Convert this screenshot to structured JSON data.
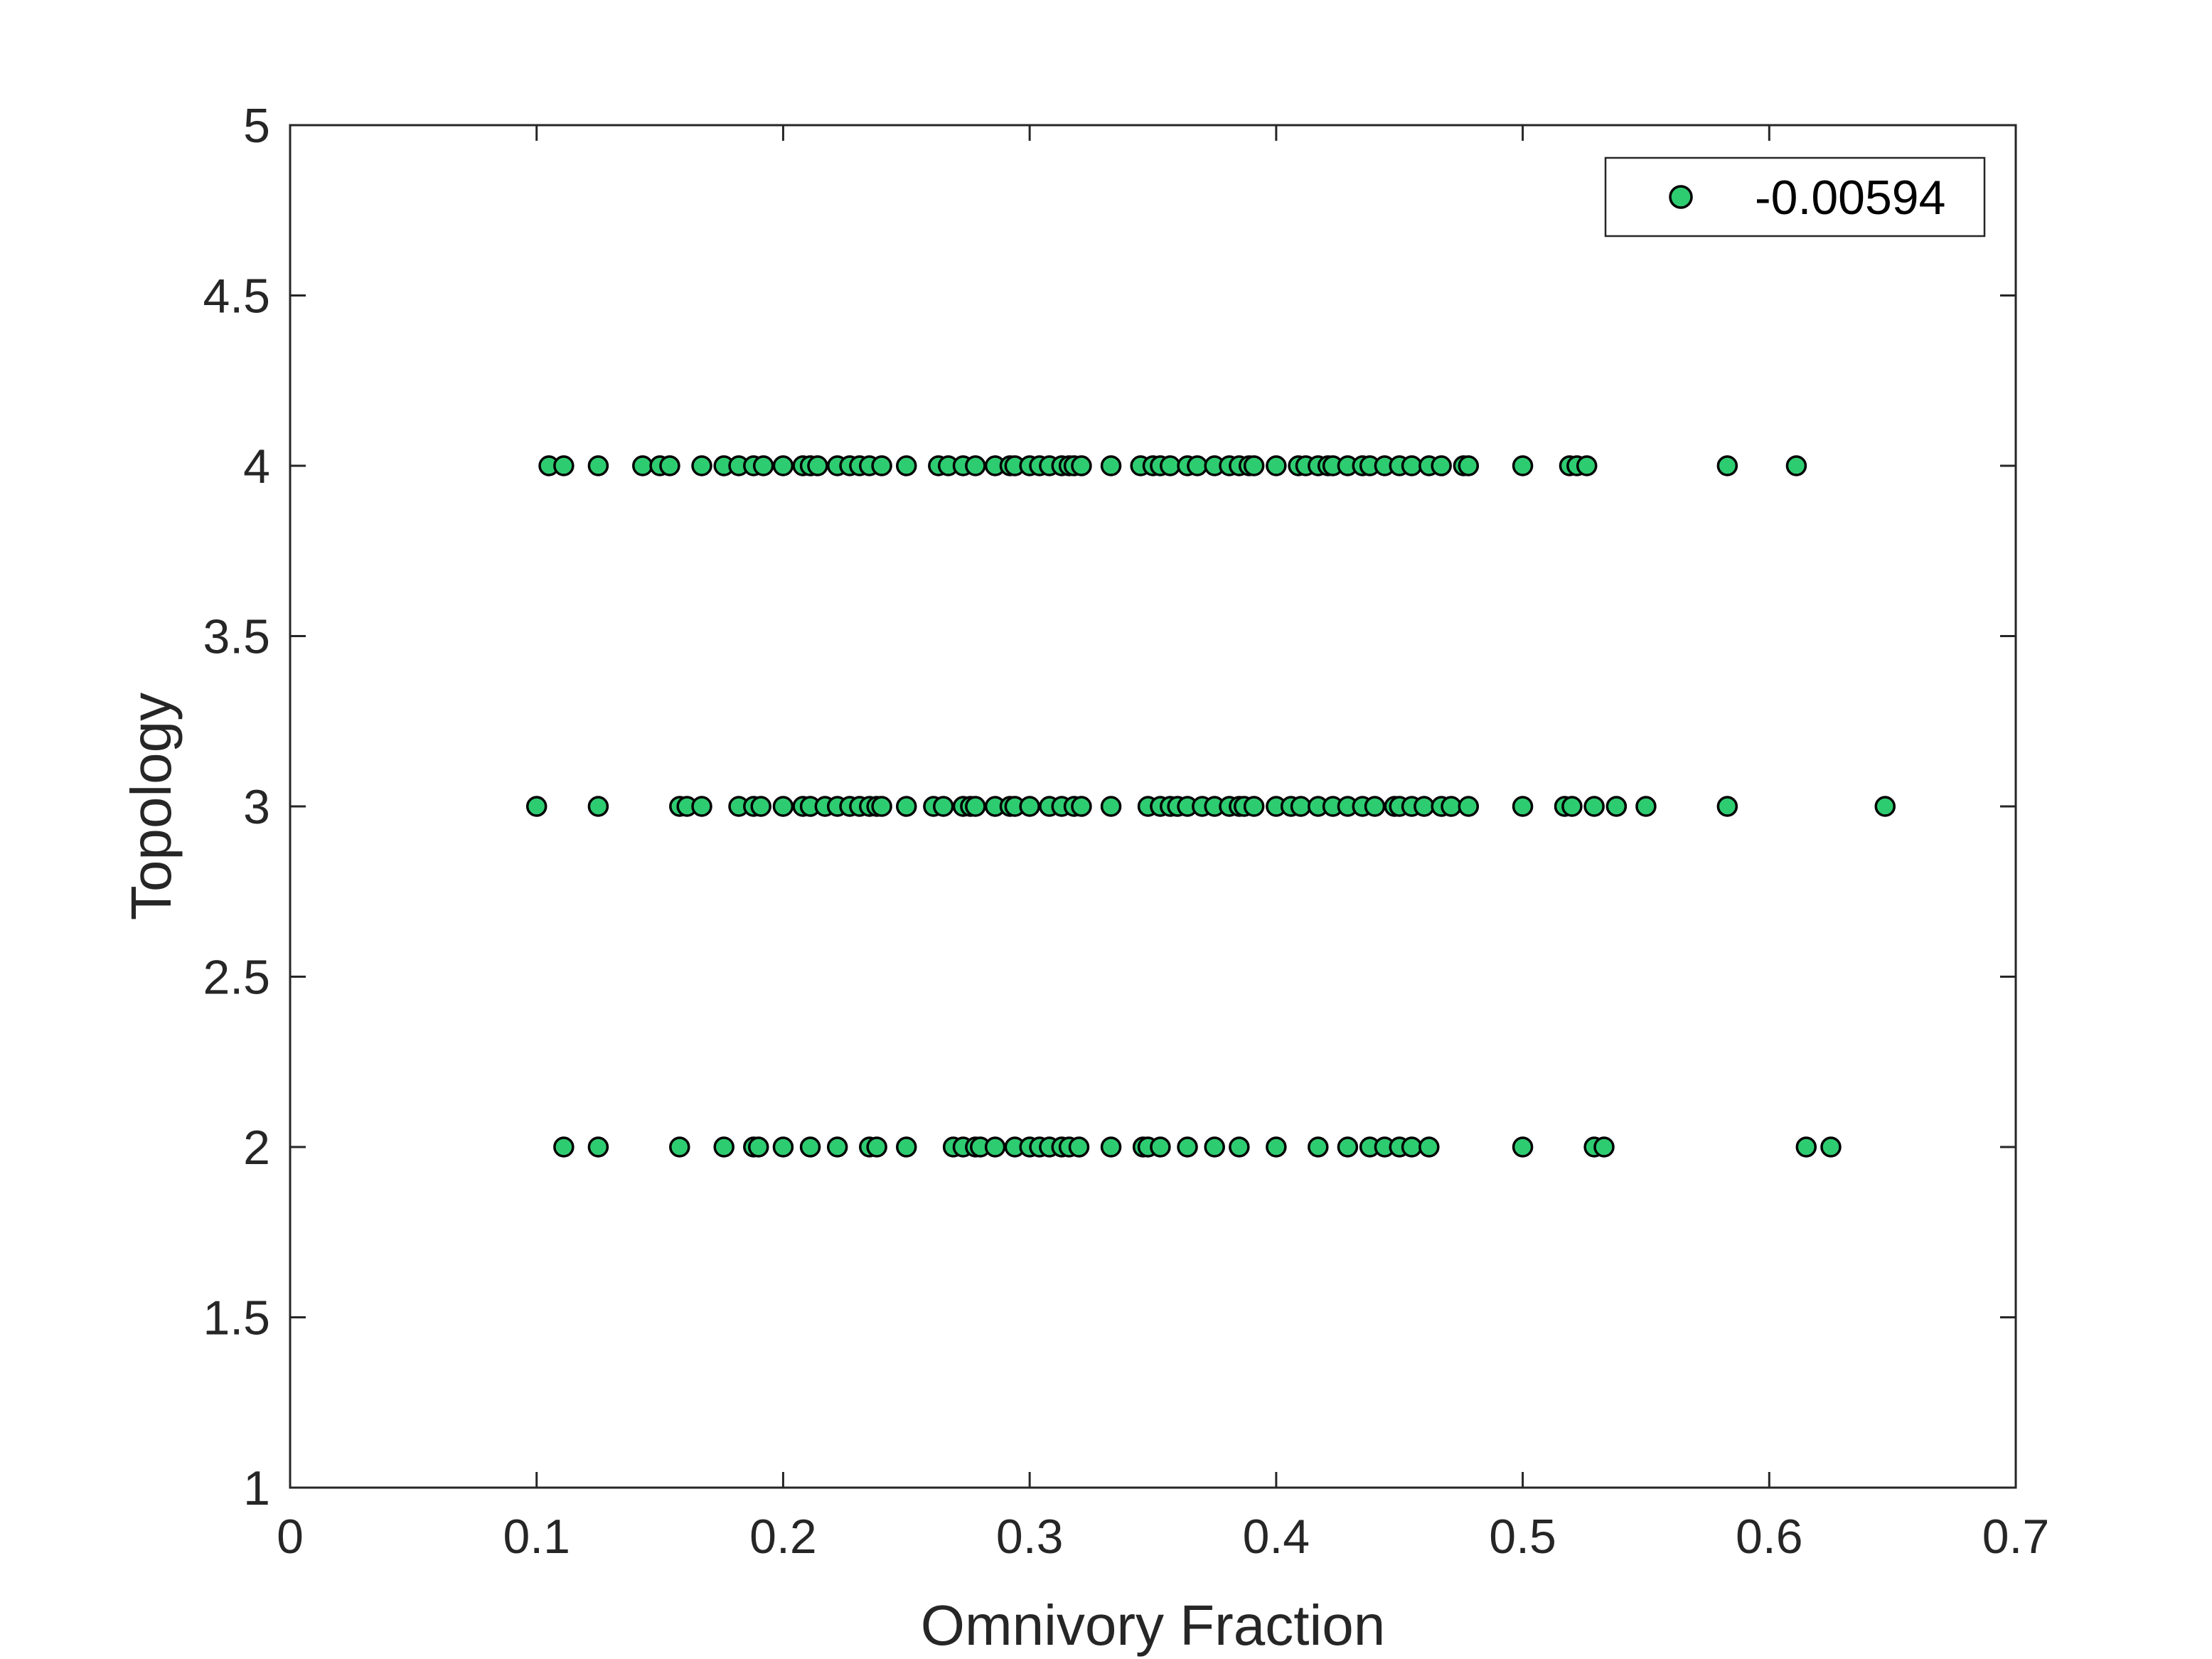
{
  "chart_data": {
    "type": "scatter",
    "title": "",
    "xlabel": "Omnivory Fraction",
    "ylabel": "Topology",
    "xlim": [
      0,
      0.7
    ],
    "ylim": [
      1,
      5
    ],
    "xticks": [
      "0",
      "0.1",
      "0.2",
      "0.3",
      "0.4",
      "0.5",
      "0.6",
      "0.7"
    ],
    "yticks": [
      "1",
      "1.5",
      "2",
      "2.5",
      "3",
      "3.5",
      "4",
      "4.5",
      "5"
    ],
    "grid": false,
    "legend_position": "top-right",
    "marker_color": "#2ecc71",
    "marker_edge_color": "#000000",
    "series": [
      {
        "name": "-0.00594",
        "points": [
          [
            0.105,
            4
          ],
          [
            0.111,
            4
          ],
          [
            0.125,
            4
          ],
          [
            0.143,
            4
          ],
          [
            0.15,
            4
          ],
          [
            0.154,
            4
          ],
          [
            0.167,
            4
          ],
          [
            0.176,
            4
          ],
          [
            0.182,
            4
          ],
          [
            0.188,
            4
          ],
          [
            0.192,
            4
          ],
          [
            0.2,
            4
          ],
          [
            0.208,
            4
          ],
          [
            0.211,
            4
          ],
          [
            0.214,
            4
          ],
          [
            0.222,
            4
          ],
          [
            0.227,
            4
          ],
          [
            0.231,
            4
          ],
          [
            0.235,
            4
          ],
          [
            0.24,
            4
          ],
          [
            0.25,
            4
          ],
          [
            0.263,
            4
          ],
          [
            0.267,
            4
          ],
          [
            0.273,
            4
          ],
          [
            0.278,
            4
          ],
          [
            0.286,
            4
          ],
          [
            0.292,
            4
          ],
          [
            0.294,
            4
          ],
          [
            0.3,
            4
          ],
          [
            0.304,
            4
          ],
          [
            0.308,
            4
          ],
          [
            0.313,
            4
          ],
          [
            0.316,
            4
          ],
          [
            0.318,
            4
          ],
          [
            0.321,
            4
          ],
          [
            0.333,
            4
          ],
          [
            0.345,
            4
          ],
          [
            0.35,
            4
          ],
          [
            0.353,
            4
          ],
          [
            0.357,
            4
          ],
          [
            0.364,
            4
          ],
          [
            0.368,
            4
          ],
          [
            0.375,
            4
          ],
          [
            0.381,
            4
          ],
          [
            0.385,
            4
          ],
          [
            0.389,
            4
          ],
          [
            0.391,
            4
          ],
          [
            0.4,
            4
          ],
          [
            0.409,
            4
          ],
          [
            0.412,
            4
          ],
          [
            0.417,
            4
          ],
          [
            0.421,
            4
          ],
          [
            0.423,
            4
          ],
          [
            0.429,
            4
          ],
          [
            0.435,
            4
          ],
          [
            0.438,
            4
          ],
          [
            0.444,
            4
          ],
          [
            0.45,
            4
          ],
          [
            0.455,
            4
          ],
          [
            0.462,
            4
          ],
          [
            0.467,
            4
          ],
          [
            0.476,
            4
          ],
          [
            0.478,
            4
          ],
          [
            0.5,
            4
          ],
          [
            0.519,
            4
          ],
          [
            0.522,
            4
          ],
          [
            0.526,
            4
          ],
          [
            0.583,
            4
          ],
          [
            0.611,
            4
          ],
          [
            0.1,
            3
          ],
          [
            0.125,
            3
          ],
          [
            0.158,
            3
          ],
          [
            0.161,
            3
          ],
          [
            0.167,
            3
          ],
          [
            0.182,
            3
          ],
          [
            0.188,
            3
          ],
          [
            0.191,
            3
          ],
          [
            0.2,
            3
          ],
          [
            0.208,
            3
          ],
          [
            0.211,
            3
          ],
          [
            0.217,
            3
          ],
          [
            0.222,
            3
          ],
          [
            0.227,
            3
          ],
          [
            0.231,
            3
          ],
          [
            0.235,
            3
          ],
          [
            0.238,
            3
          ],
          [
            0.24,
            3
          ],
          [
            0.25,
            3
          ],
          [
            0.261,
            3
          ],
          [
            0.265,
            3
          ],
          [
            0.273,
            3
          ],
          [
            0.276,
            3
          ],
          [
            0.278,
            3
          ],
          [
            0.286,
            3
          ],
          [
            0.292,
            3
          ],
          [
            0.294,
            3
          ],
          [
            0.3,
            3
          ],
          [
            0.308,
            3
          ],
          [
            0.313,
            3
          ],
          [
            0.318,
            3
          ],
          [
            0.321,
            3
          ],
          [
            0.333,
            3
          ],
          [
            0.348,
            3
          ],
          [
            0.353,
            3
          ],
          [
            0.357,
            3
          ],
          [
            0.36,
            3
          ],
          [
            0.364,
            3
          ],
          [
            0.37,
            3
          ],
          [
            0.375,
            3
          ],
          [
            0.381,
            3
          ],
          [
            0.385,
            3
          ],
          [
            0.387,
            3
          ],
          [
            0.391,
            3
          ],
          [
            0.4,
            3
          ],
          [
            0.406,
            3
          ],
          [
            0.41,
            3
          ],
          [
            0.417,
            3
          ],
          [
            0.423,
            3
          ],
          [
            0.429,
            3
          ],
          [
            0.435,
            3
          ],
          [
            0.44,
            3
          ],
          [
            0.448,
            3
          ],
          [
            0.45,
            3
          ],
          [
            0.455,
            3
          ],
          [
            0.46,
            3
          ],
          [
            0.467,
            3
          ],
          [
            0.471,
            3
          ],
          [
            0.478,
            3
          ],
          [
            0.5,
            3
          ],
          [
            0.517,
            3
          ],
          [
            0.52,
            3
          ],
          [
            0.529,
            3
          ],
          [
            0.538,
            3
          ],
          [
            0.55,
            3
          ],
          [
            0.583,
            3
          ],
          [
            0.647,
            3
          ],
          [
            0.111,
            2
          ],
          [
            0.125,
            2
          ],
          [
            0.158,
            2
          ],
          [
            0.176,
            2
          ],
          [
            0.188,
            2
          ],
          [
            0.19,
            2
          ],
          [
            0.2,
            2
          ],
          [
            0.211,
            2
          ],
          [
            0.222,
            2
          ],
          [
            0.235,
            2
          ],
          [
            0.238,
            2
          ],
          [
            0.25,
            2
          ],
          [
            0.269,
            2
          ],
          [
            0.273,
            2
          ],
          [
            0.278,
            2
          ],
          [
            0.28,
            2
          ],
          [
            0.286,
            2
          ],
          [
            0.294,
            2
          ],
          [
            0.3,
            2
          ],
          [
            0.304,
            2
          ],
          [
            0.308,
            2
          ],
          [
            0.313,
            2
          ],
          [
            0.316,
            2
          ],
          [
            0.32,
            2
          ],
          [
            0.333,
            2
          ],
          [
            0.346,
            2
          ],
          [
            0.348,
            2
          ],
          [
            0.353,
            2
          ],
          [
            0.364,
            2
          ],
          [
            0.375,
            2
          ],
          [
            0.385,
            2
          ],
          [
            0.4,
            2
          ],
          [
            0.417,
            2
          ],
          [
            0.429,
            2
          ],
          [
            0.438,
            2
          ],
          [
            0.444,
            2
          ],
          [
            0.45,
            2
          ],
          [
            0.455,
            2
          ],
          [
            0.462,
            2
          ],
          [
            0.5,
            2
          ],
          [
            0.529,
            2
          ],
          [
            0.533,
            2
          ],
          [
            0.615,
            2
          ],
          [
            0.625,
            2
          ]
        ]
      }
    ]
  }
}
